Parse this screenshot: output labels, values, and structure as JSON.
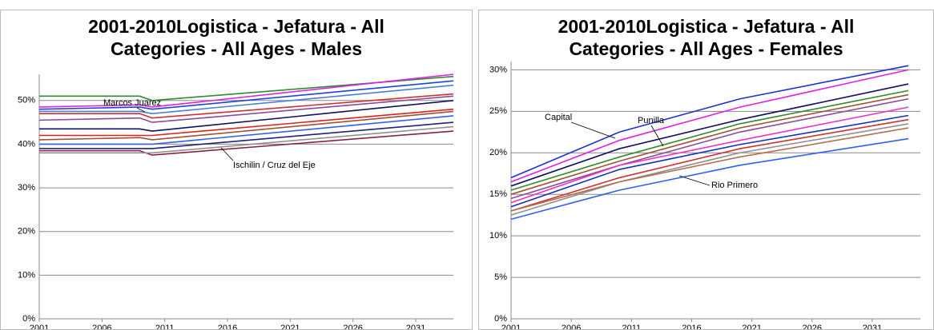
{
  "chart_data": [
    {
      "type": "line",
      "title": "2001-2010Logistica - Jefatura - All Categories - All Ages - Males",
      "x": [
        2001,
        2009,
        2010,
        2034
      ],
      "xlim": [
        2001,
        2034
      ],
      "xticks": [
        2001,
        2006,
        2011,
        2016,
        2021,
        2026,
        2031
      ],
      "ylim": [
        0,
        56
      ],
      "yticks": [
        {
          "value": 0,
          "label": "0%"
        },
        {
          "value": 10,
          "label": "10%"
        },
        {
          "value": 20,
          "label": "20%"
        },
        {
          "value": 30,
          "label": "30%"
        },
        {
          "value": 40,
          "label": "40%"
        },
        {
          "value": 50,
          "label": "50%"
        }
      ],
      "grid": true,
      "annotations": [
        "Marcos Juarez",
        "Ischilin / Cruz del Eje"
      ],
      "series": [
        {
          "color": "#2e8b2e",
          "values": [
            51,
            51,
            50,
            55.5
          ]
        },
        {
          "color": "#e020e0",
          "values": [
            48.5,
            49,
            48.5,
            56
          ]
        },
        {
          "color": "#2040e0",
          "values": [
            48,
            48.5,
            48,
            54.5
          ]
        },
        {
          "color": "#4a7fd8",
          "values": [
            47.5,
            47.5,
            47,
            53.5
          ]
        },
        {
          "color": "#d03030",
          "values": [
            47,
            47,
            46,
            51.5
          ]
        },
        {
          "color": "#8a4a9a",
          "values": [
            45.5,
            46,
            45,
            51
          ]
        },
        {
          "color": "#101060",
          "values": [
            43.5,
            43.5,
            43,
            50
          ]
        },
        {
          "color": "#e02020",
          "values": [
            42,
            42,
            42,
            48
          ]
        },
        {
          "color": "#a0522d",
          "values": [
            41,
            41.5,
            41,
            47.5
          ]
        },
        {
          "color": "#3060f0",
          "values": [
            40,
            40,
            40,
            46.5
          ]
        },
        {
          "color": "#202080",
          "values": [
            39,
            39,
            39,
            45
          ]
        },
        {
          "color": "#8b2040",
          "values": [
            38.5,
            38.5,
            37.5,
            43
          ]
        },
        {
          "color": "#909090",
          "values": [
            38,
            38,
            38,
            44
          ]
        }
      ]
    },
    {
      "type": "line",
      "title": "2001-2010Logistica - Jefatura - All Categories - All Ages - Females",
      "x": [
        2001,
        2010,
        2020,
        2034
      ],
      "xlim": [
        2001,
        2035
      ],
      "xticks": [
        2001,
        2006,
        2011,
        2016,
        2021,
        2026,
        2031
      ],
      "ylim": [
        0,
        31
      ],
      "yticks": [
        {
          "value": 0,
          "label": "0%"
        },
        {
          "value": 5,
          "label": "5%"
        },
        {
          "value": 10,
          "label": "10%"
        },
        {
          "value": 15,
          "label": "15%"
        },
        {
          "value": 20,
          "label": "20%"
        },
        {
          "value": 25,
          "label": "25%"
        },
        {
          "value": 30,
          "label": "30%"
        }
      ],
      "grid": true,
      "annotations": [
        "Capital",
        "Punilla",
        "Rio Primero"
      ],
      "series": [
        {
          "color": "#2030d0",
          "values": [
            17,
            22.5,
            26.5,
            30.5
          ]
        },
        {
          "color": "#e020e0",
          "values": [
            16.5,
            21.5,
            25.5,
            30
          ]
        },
        {
          "color": "#101060",
          "values": [
            16,
            20.5,
            24,
            28.3
          ]
        },
        {
          "color": "#2e8b2e",
          "values": [
            15.5,
            19.5,
            23.5,
            27.5
          ]
        },
        {
          "color": "#a0522d",
          "values": [
            15,
            19,
            23,
            27
          ]
        },
        {
          "color": "#8a4a9a",
          "values": [
            14.5,
            18.5,
            22.5,
            26.5
          ]
        },
        {
          "color": "#f030c0",
          "values": [
            14,
            18.5,
            21.5,
            25.5
          ]
        },
        {
          "color": "#1030c0",
          "values": [
            13.5,
            18,
            21,
            24.5
          ]
        },
        {
          "color": "#d03030",
          "values": [
            13,
            17,
            20.5,
            24
          ]
        },
        {
          "color": "#909090",
          "values": [
            12.5,
            16.5,
            20,
            23.5
          ]
        },
        {
          "color": "#b07050",
          "values": [
            13,
            16.5,
            19.5,
            23
          ]
        },
        {
          "color": "#3060f0",
          "values": [
            12,
            15.5,
            18.5,
            21.7
          ]
        }
      ]
    }
  ]
}
